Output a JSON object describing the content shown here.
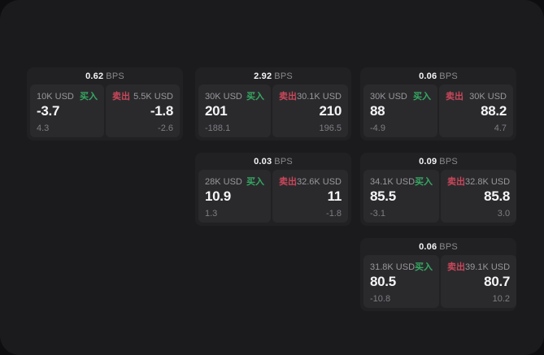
{
  "labels": {
    "bps": "BPS",
    "buy": "买入",
    "sell": "卖出"
  },
  "colors": {
    "buy_green": "#36a862",
    "sell_red": "#c9475a",
    "panel_bg": "#1b1b1d",
    "card_bg": "#212124",
    "pane_bg": "#2a2a2d"
  },
  "cards": [
    {
      "bps": "0.62",
      "buy": {
        "amount": "10K USD",
        "main": "-3.7",
        "sub": "4.3"
      },
      "sell": {
        "amount": "5.5K USD",
        "main": "-1.8",
        "sub": "-2.6"
      }
    },
    {
      "bps": "2.92",
      "buy": {
        "amount": "30K USD",
        "main": "201",
        "sub": "-188.1"
      },
      "sell": {
        "amount": "30.1K USD",
        "main": "210",
        "sub": "196.5"
      }
    },
    {
      "bps": "0.06",
      "buy": {
        "amount": "30K USD",
        "main": "88",
        "sub": "-4.9"
      },
      "sell": {
        "amount": "30K USD",
        "main": "88.2",
        "sub": "4.7"
      }
    },
    {
      "bps": "0.03",
      "buy": {
        "amount": "28K USD",
        "main": "10.9",
        "sub": "1.3"
      },
      "sell": {
        "amount": "32.6K USD",
        "main": "11",
        "sub": "-1.8"
      }
    },
    {
      "bps": "0.09",
      "buy": {
        "amount": "34.1K USD",
        "main": "85.5",
        "sub": "-3.1"
      },
      "sell": {
        "amount": "32.8K USD",
        "main": "85.8",
        "sub": "3.0"
      }
    },
    {
      "bps": "0.06",
      "buy": {
        "amount": "31.8K USD",
        "main": "80.5",
        "sub": "-10.8"
      },
      "sell": {
        "amount": "39.1K USD",
        "main": "80.7",
        "sub": "10.2"
      }
    }
  ]
}
